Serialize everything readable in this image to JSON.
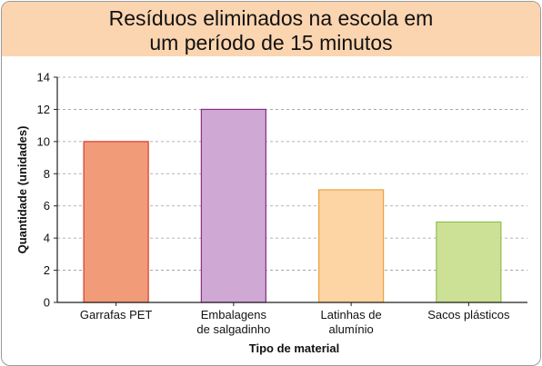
{
  "title_lines": [
    "Resíduos eliminados na escola em",
    "um período de 15 minutos"
  ],
  "colors": {
    "title_band": "#fbd5b0",
    "grid": "#9a9a9a",
    "axis": "#222222"
  },
  "chart_data": {
    "type": "bar",
    "title": "Resíduos eliminados na escola em um período de 15 minutos",
    "xlabel": "Tipo de material",
    "ylabel": "Quantidade (unidades)",
    "ylim": [
      0,
      14
    ],
    "yticks": [
      0,
      2,
      4,
      6,
      8,
      10,
      12,
      14
    ],
    "grid": "horizontal dashed",
    "categories": [
      [
        "Garrafas PET"
      ],
      [
        "Embalagens",
        "de salgadinho"
      ],
      [
        "Latinhas de",
        "alumínio"
      ],
      [
        "Sacos plásticos"
      ]
    ],
    "values": [
      10,
      12,
      7,
      5
    ],
    "bar_colors": [
      {
        "fill": "#f29b78",
        "stroke": "#d63c2e"
      },
      {
        "fill": "#cfa8d4",
        "stroke": "#8b2c8a"
      },
      {
        "fill": "#fdd4a4",
        "stroke": "#e8a23a"
      },
      {
        "fill": "#cde196",
        "stroke": "#8fc04e"
      }
    ]
  }
}
